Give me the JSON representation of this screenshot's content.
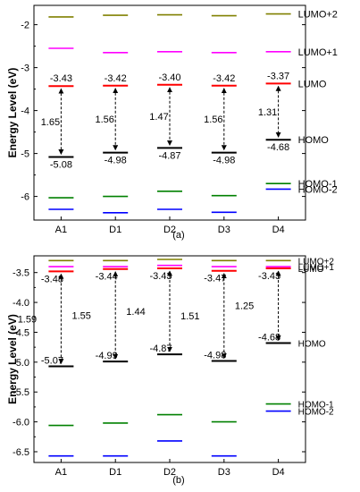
{
  "chart_data": [
    {
      "panel_label": "(a)",
      "type": "energy-level",
      "ylabel": "Energy Level (eV)",
      "ylim": [
        -6.55,
        -1.55
      ],
      "yticks": [
        -2,
        -3,
        -4,
        -5,
        -6
      ],
      "categories": [
        "A1",
        "D1",
        "D2",
        "D3",
        "D4"
      ],
      "colors": {
        "LUMO+2": "#808000",
        "LUMO+1": "#ff00ff",
        "LUMO": "#ff0000",
        "HOMO": "#000000",
        "HOMO-1": "#008000",
        "HOMO-2": "#0000ff"
      },
      "series": [
        {
          "name": "LUMO+2",
          "values": [
            -1.82,
            -1.78,
            -1.77,
            -1.79,
            -1.75
          ]
        },
        {
          "name": "LUMO+1",
          "values": [
            -2.55,
            -2.65,
            -2.63,
            -2.65,
            -2.63
          ]
        },
        {
          "name": "LUMO",
          "values": [
            -3.43,
            -3.42,
            -3.4,
            -3.42,
            -3.37
          ]
        },
        {
          "name": "HOMO",
          "values": [
            -5.08,
            -4.98,
            -4.87,
            -4.98,
            -4.68
          ]
        },
        {
          "name": "HOMO-1",
          "values": [
            -6.03,
            -6.0,
            -5.88,
            -5.98,
            -5.7
          ]
        },
        {
          "name": "HOMO-2",
          "values": [
            -6.3,
            -6.38,
            -6.3,
            -6.37,
            -5.83
          ]
        }
      ],
      "lumo_labels": [
        "-3.43",
        "-3.42",
        "-3.40",
        "-3.42",
        "-3.37"
      ],
      "homo_labels": [
        "-5.08",
        "-4.98",
        "-4.87",
        "-4.98",
        "-4.68"
      ],
      "gap_labels": [
        "1.65",
        "1.56",
        "1.47",
        "1.56",
        "1.31"
      ],
      "tick_labels": [
        "-2",
        "-3",
        "-4",
        "-5",
        "-6"
      ]
    },
    {
      "panel_label": "(b)",
      "type": "energy-level",
      "ylabel": "Energy Level (eV)",
      "ylim": [
        -6.68,
        -3.22
      ],
      "yticks": [
        -3.5,
        -4.0,
        -4.5,
        -5.0,
        -5.5,
        -6.0,
        -6.5
      ],
      "categories": [
        "A1",
        "D1",
        "D2",
        "D3",
        "D4"
      ],
      "colors": {
        "LUMO+2": "#808000",
        "LUMO+1": "#ff00ff",
        "LUMO": "#ff0000",
        "HOMO": "#000000",
        "HOMO-1": "#008000",
        "HOMO-2": "#0000ff"
      },
      "series": [
        {
          "name": "LUMO+2",
          "values": [
            -3.3,
            -3.3,
            -3.28,
            -3.3,
            -3.3
          ]
        },
        {
          "name": "LUMO+1",
          "values": [
            -3.4,
            -3.4,
            -3.38,
            -3.4,
            -3.4
          ]
        },
        {
          "name": "LUMO",
          "values": [
            -3.48,
            -3.44,
            -3.43,
            -3.47,
            -3.43
          ]
        },
        {
          "name": "HOMO",
          "values": [
            -5.07,
            -4.99,
            -4.87,
            -4.98,
            -4.68
          ]
        },
        {
          "name": "HOMO-1",
          "values": [
            -6.06,
            -6.02,
            -5.88,
            -6.0,
            -5.7
          ]
        },
        {
          "name": "HOMO-2",
          "values": [
            -6.57,
            -6.57,
            -6.32,
            -6.57,
            -5.82
          ]
        }
      ],
      "lumo_labels": [
        "-3.48",
        "-3.44",
        "-3.43",
        "-3.47",
        "-3.43"
      ],
      "homo_labels": [
        "-5.07",
        "-4.99",
        "-4.87",
        "-4.98",
        "-4.68"
      ],
      "gap_labels": [
        "1.59",
        "1.55",
        "1.44",
        "1.51",
        "1.25"
      ],
      "tick_labels": [
        "-3.5",
        "-4.0",
        "-4.5",
        "-5.0",
        "-5.5",
        "-6.0",
        "-6.5"
      ]
    }
  ]
}
